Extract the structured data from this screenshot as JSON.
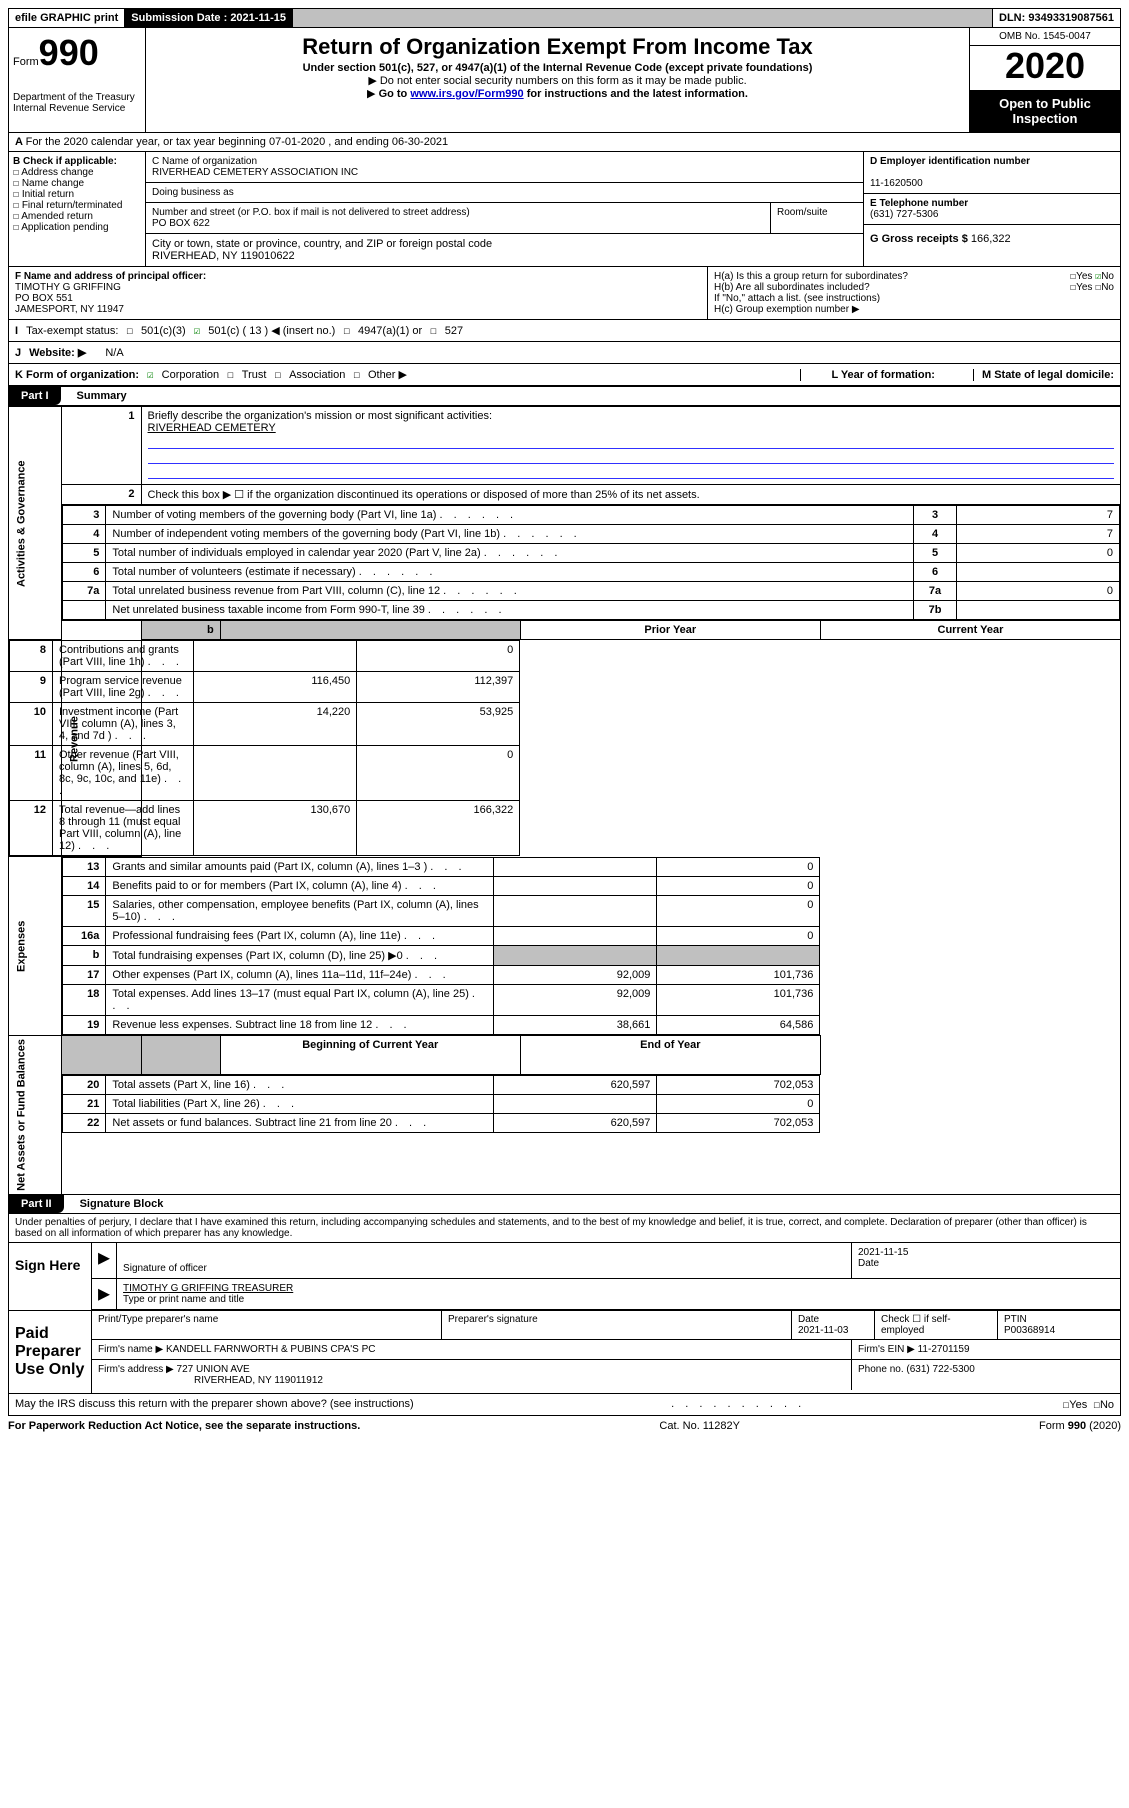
{
  "header_bar": {
    "efile": "efile GRAPHIC print",
    "submission_label": "Submission Date : 2021-11-15",
    "dln": "DLN: 93493319087561"
  },
  "top": {
    "form_prefix": "Form",
    "form_num": "990",
    "dept": "Department of the Treasury\nInternal Revenue Service",
    "title": "Return of Organization Exempt From Income Tax",
    "subtitle": "Under section 501(c), 527, or 4947(a)(1) of the Internal Revenue Code (except private foundations)",
    "note1": "Do not enter social security numbers on this form as it may be made public.",
    "note2_pre": "Go to ",
    "note2_link": "www.irs.gov/Form990",
    "note2_post": " for instructions and the latest information.",
    "omb": "OMB No. 1545-0047",
    "year": "2020",
    "inspect": "Open to Public Inspection"
  },
  "row_a": "For the 2020 calendar year, or tax year beginning 07-01-2020    , and ending 06-30-2021",
  "b": {
    "label": "B Check if applicable:",
    "opts": [
      "Address change",
      "Name change",
      "Initial return",
      "Final return/terminated",
      "Amended return",
      "Application pending"
    ]
  },
  "c": {
    "name_label": "C Name of organization",
    "name": "RIVERHEAD CEMETERY ASSOCIATION INC",
    "dba": "Doing business as",
    "street_label": "Number and street (or P.O. box if mail is not delivered to street address)",
    "room": "Room/suite",
    "street": "PO BOX 622",
    "city_label": "City or town, state or province, country, and ZIP or foreign postal code",
    "city": "RIVERHEAD, NY  119010622"
  },
  "d": {
    "ein_label": "D Employer identification number",
    "ein": "11-1620500",
    "phone_label": "E Telephone number",
    "phone": "(631) 727-5306",
    "gross_label": "G Gross receipts $",
    "gross": "166,322"
  },
  "f": {
    "label": "F  Name and address of principal officer:",
    "name": "TIMOTHY G GRIFFING",
    "street": "PO BOX 551",
    "city": "JAMESPORT, NY  11947"
  },
  "h": {
    "a": "H(a)  Is this a group return for subordinates?",
    "b": "H(b)  Are all subordinates included?",
    "note": "If \"No,\" attach a list. (see instructions)",
    "c": "H(c)  Group exemption number ▶"
  },
  "i": {
    "label": "Tax-exempt status:",
    "opt1": "501(c)(3)",
    "opt2": "501(c) ( 13 ) ◀ (insert no.)",
    "opt3": "4947(a)(1) or",
    "opt4": "527"
  },
  "j": {
    "label": "Website: ▶",
    "val": "N/A"
  },
  "k": {
    "label": "K Form of organization:",
    "opts": [
      "Corporation",
      "Trust",
      "Association",
      "Other ▶"
    ],
    "l": "L Year of formation:",
    "m": "M State of legal domicile:"
  },
  "part1": {
    "tab": "Part I",
    "title": "Summary",
    "vert_gov": "Activities & Governance",
    "vert_rev": "Revenue",
    "vert_exp": "Expenses",
    "vert_net": "Net Assets or Fund Balances",
    "q1": "Briefly describe the organization's mission or most significant activities:",
    "q1_ans": "RIVERHEAD CEMETERY",
    "q2": "Check this box ▶ ☐  if the organization discontinued its operations or disposed of more than 25% of its net assets.",
    "lines": [
      {
        "n": "3",
        "t": "Number of voting members of the governing body (Part VI, line 1a)",
        "box": "3",
        "v": "7"
      },
      {
        "n": "4",
        "t": "Number of independent voting members of the governing body (Part VI, line 1b)",
        "box": "4",
        "v": "7"
      },
      {
        "n": "5",
        "t": "Total number of individuals employed in calendar year 2020 (Part V, line 2a)",
        "box": "5",
        "v": "0"
      },
      {
        "n": "6",
        "t": "Total number of volunteers (estimate if necessary)",
        "box": "6",
        "v": ""
      },
      {
        "n": "7a",
        "t": "Total unrelated business revenue from Part VIII, column (C), line 12",
        "box": "7a",
        "v": "0"
      },
      {
        "n": "",
        "t": "Net unrelated business taxable income from Form 990-T, line 39",
        "box": "7b",
        "v": ""
      }
    ],
    "hdr_prior": "Prior Year",
    "hdr_curr": "Current Year",
    "rev": [
      {
        "n": "8",
        "t": "Contributions and grants (Part VIII, line 1h)",
        "p": "",
        "c": "0"
      },
      {
        "n": "9",
        "t": "Program service revenue (Part VIII, line 2g)",
        "p": "116,450",
        "c": "112,397"
      },
      {
        "n": "10",
        "t": "Investment income (Part VIII, column (A), lines 3, 4, and 7d )",
        "p": "14,220",
        "c": "53,925"
      },
      {
        "n": "11",
        "t": "Other revenue (Part VIII, column (A), lines 5, 6d, 8c, 9c, 10c, and 11e)",
        "p": "",
        "c": "0"
      },
      {
        "n": "12",
        "t": "Total revenue—add lines 8 through 11 (must equal Part VIII, column (A), line 12)",
        "p": "130,670",
        "c": "166,322"
      }
    ],
    "exp": [
      {
        "n": "13",
        "t": "Grants and similar amounts paid (Part IX, column (A), lines 1–3 )",
        "p": "",
        "c": "0"
      },
      {
        "n": "14",
        "t": "Benefits paid to or for members (Part IX, column (A), line 4)",
        "p": "",
        "c": "0"
      },
      {
        "n": "15",
        "t": "Salaries, other compensation, employee benefits (Part IX, column (A), lines 5–10)",
        "p": "",
        "c": "0"
      },
      {
        "n": "16a",
        "t": "Professional fundraising fees (Part IX, column (A), line 11e)",
        "p": "",
        "c": "0"
      },
      {
        "n": "b",
        "t": "Total fundraising expenses (Part IX, column (D), line 25) ▶0",
        "p": "grey",
        "c": "grey"
      },
      {
        "n": "17",
        "t": "Other expenses (Part IX, column (A), lines 11a–11d, 11f–24e)",
        "p": "92,009",
        "c": "101,736"
      },
      {
        "n": "18",
        "t": "Total expenses. Add lines 13–17 (must equal Part IX, column (A), line 25)",
        "p": "92,009",
        "c": "101,736"
      },
      {
        "n": "19",
        "t": "Revenue less expenses. Subtract line 18 from line 12",
        "p": "38,661",
        "c": "64,586"
      }
    ],
    "hdr_beg": "Beginning of Current Year",
    "hdr_end": "End of Year",
    "net": [
      {
        "n": "20",
        "t": "Total assets (Part X, line 16)",
        "p": "620,597",
        "c": "702,053"
      },
      {
        "n": "21",
        "t": "Total liabilities (Part X, line 26)",
        "p": "",
        "c": "0"
      },
      {
        "n": "22",
        "t": "Net assets or fund balances. Subtract line 21 from line 20",
        "p": "620,597",
        "c": "702,053"
      }
    ]
  },
  "part2": {
    "tab": "Part II",
    "title": "Signature Block",
    "decl": "Under penalties of perjury, I declare that I have examined this return, including accompanying schedules and statements, and to the best of my knowledge and belief, it is true, correct, and complete. Declaration of preparer (other than officer) is based on all information of which preparer has any knowledge.",
    "sign_here": "Sign Here",
    "sig_officer": "Signature of officer",
    "date": "Date",
    "date_val": "2021-11-15",
    "name_title": "TIMOTHY G GRIFFING  TREASURER",
    "type_name": "Type or print name and title",
    "paid": "Paid Preparer Use Only",
    "prep_name_label": "Print/Type preparer's name",
    "prep_sig_label": "Preparer's signature",
    "prep_date_label": "Date",
    "prep_date": "2021-11-03",
    "check_self": "Check ☐ if self-employed",
    "ptin_label": "PTIN",
    "ptin": "P00368914",
    "firm_name_label": "Firm's name    ▶",
    "firm_name": "KANDELL FARNWORTH & PUBINS CPA'S PC",
    "firm_ein_label": "Firm's EIN ▶",
    "firm_ein": "11-2701159",
    "firm_addr_label": "Firm's address ▶",
    "firm_addr1": "727 UNION AVE",
    "firm_addr2": "RIVERHEAD, NY  119011912",
    "firm_phone_label": "Phone no.",
    "firm_phone": "(631) 722-5300",
    "discuss": "May the IRS discuss this return with the preparer shown above? (see instructions)"
  },
  "footer": {
    "left": "For Paperwork Reduction Act Notice, see the separate instructions.",
    "mid": "Cat. No. 11282Y",
    "right": "Form 990 (2020)"
  }
}
